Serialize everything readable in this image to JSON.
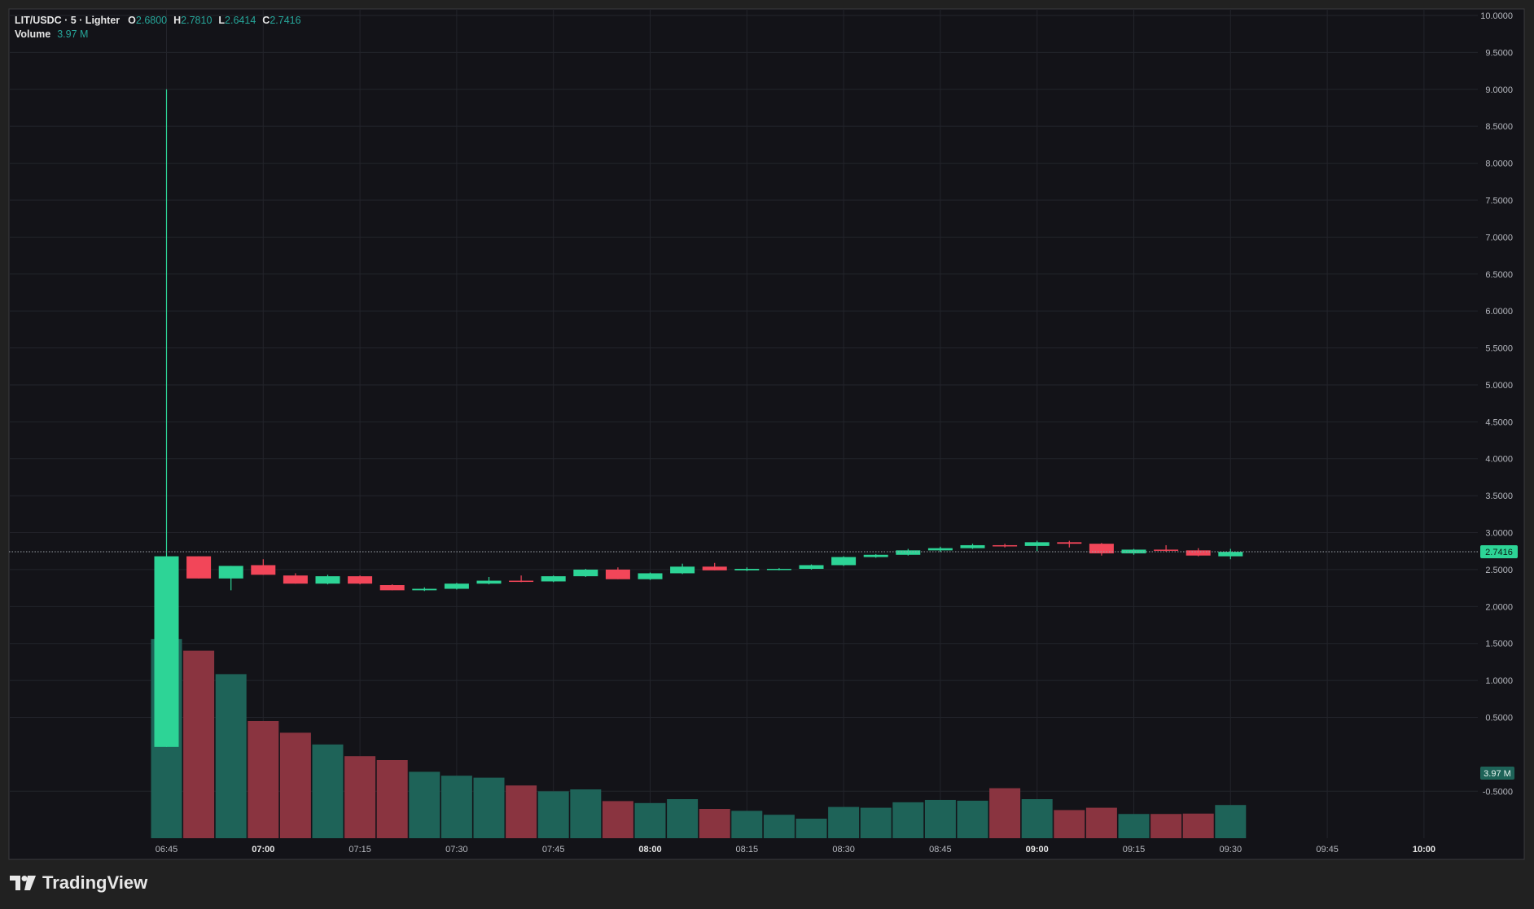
{
  "header": {
    "symbol_line": "LIT/USDC · 5 · Lighter",
    "open_key": "O",
    "open": "2.6800",
    "high_key": "H",
    "high": "2.7810",
    "low_key": "L",
    "low": "2.6414",
    "close_key": "C",
    "close": "2.7416",
    "volume_key": "Volume",
    "volume": "3.97 M"
  },
  "branding": {
    "name": "TradingView",
    "logo_icon": "tradingview-logo-icon"
  },
  "colors": {
    "background": "#131318",
    "outer": "#212121",
    "grid": "#23242b",
    "up": "#2dd496",
    "down": "#f24659",
    "vol_up": "#1e6358",
    "vol_down": "#8a3440",
    "axis_text": "#b6b8bf",
    "last_price_bg": "#2dd496"
  },
  "chart_data": {
    "type": "candlestick",
    "title": "LIT/USDC · 5 · Lighter",
    "interval_minutes": 5,
    "ylim": [
      -0.75,
      10.0
    ],
    "y_ticks": [
      "10.0000",
      "9.5000",
      "9.0000",
      "8.5000",
      "8.0000",
      "7.5000",
      "7.0000",
      "6.5000",
      "6.0000",
      "5.5000",
      "5.0000",
      "4.5000",
      "4.0000",
      "3.5000",
      "3.0000",
      "2.5000",
      "2.0000",
      "1.5000",
      "1.0000",
      "0.5000",
      "-0.5000"
    ],
    "y_tick_values": [
      10,
      9.5,
      9,
      8.5,
      8,
      7.5,
      7,
      6.5,
      6,
      5.5,
      5,
      4.5,
      4,
      3.5,
      3,
      2.5,
      2,
      1.5,
      1,
      0.5,
      -0.5
    ],
    "x_ticks": [
      {
        "label": "06:45",
        "bold": false
      },
      {
        "label": "07:00",
        "bold": true
      },
      {
        "label": "07:15",
        "bold": false
      },
      {
        "label": "07:30",
        "bold": false
      },
      {
        "label": "07:45",
        "bold": false
      },
      {
        "label": "08:00",
        "bold": true
      },
      {
        "label": "08:15",
        "bold": false
      },
      {
        "label": "08:30",
        "bold": false
      },
      {
        "label": "08:45",
        "bold": false
      },
      {
        "label": "09:00",
        "bold": true
      },
      {
        "label": "09:15",
        "bold": false
      },
      {
        "label": "09:30",
        "bold": false
      },
      {
        "label": "09:45",
        "bold": false
      },
      {
        "label": "10:00",
        "bold": true
      }
    ],
    "last_price": "2.7416",
    "last_volume_label": "3.97 M",
    "candles": [
      {
        "t": "06:45",
        "o": 0.1,
        "h": 9.0,
        "l": 0.1,
        "c": 2.68,
        "v": 5.1
      },
      {
        "t": "06:50",
        "o": 2.68,
        "h": 2.68,
        "l": 2.38,
        "c": 2.38,
        "v": 4.8
      },
      {
        "t": "06:55",
        "o": 2.38,
        "h": 2.55,
        "l": 2.22,
        "c": 2.55,
        "v": 4.2
      },
      {
        "t": "07:00",
        "o": 2.56,
        "h": 2.64,
        "l": 2.43,
        "c": 2.43,
        "v": 3.0
      },
      {
        "t": "07:05",
        "o": 2.42,
        "h": 2.45,
        "l": 2.31,
        "c": 2.31,
        "v": 2.7
      },
      {
        "t": "07:10",
        "o": 2.31,
        "h": 2.43,
        "l": 2.3,
        "c": 2.41,
        "v": 2.4
      },
      {
        "t": "07:15",
        "o": 2.41,
        "h": 2.42,
        "l": 2.3,
        "c": 2.31,
        "v": 2.1
      },
      {
        "t": "07:20",
        "o": 2.29,
        "h": 2.3,
        "l": 2.22,
        "c": 2.22,
        "v": 2.0
      },
      {
        "t": "07:25",
        "o": 2.22,
        "h": 2.26,
        "l": 2.21,
        "c": 2.24,
        "v": 1.7
      },
      {
        "t": "07:30",
        "o": 2.24,
        "h": 2.32,
        "l": 2.23,
        "c": 2.31,
        "v": 1.6
      },
      {
        "t": "07:35",
        "o": 2.31,
        "h": 2.4,
        "l": 2.3,
        "c": 2.35,
        "v": 1.55
      },
      {
        "t": "07:40",
        "o": 2.35,
        "h": 2.42,
        "l": 2.33,
        "c": 2.34,
        "v": 1.35
      },
      {
        "t": "07:45",
        "o": 2.34,
        "h": 2.42,
        "l": 2.33,
        "c": 2.41,
        "v": 1.2
      },
      {
        "t": "07:50",
        "o": 2.41,
        "h": 2.51,
        "l": 2.4,
        "c": 2.5,
        "v": 1.25
      },
      {
        "t": "07:55",
        "o": 2.5,
        "h": 2.53,
        "l": 2.37,
        "c": 2.37,
        "v": 0.95
      },
      {
        "t": "08:00",
        "o": 2.37,
        "h": 2.46,
        "l": 2.36,
        "c": 2.45,
        "v": 0.9
      },
      {
        "t": "08:05",
        "o": 2.45,
        "h": 2.58,
        "l": 2.44,
        "c": 2.54,
        "v": 1.0
      },
      {
        "t": "08:10",
        "o": 2.54,
        "h": 2.59,
        "l": 2.49,
        "c": 2.49,
        "v": 0.75
      },
      {
        "t": "08:15",
        "o": 2.49,
        "h": 2.53,
        "l": 2.48,
        "c": 2.51,
        "v": 0.7
      },
      {
        "t": "08:20",
        "o": 2.51,
        "h": 2.52,
        "l": 2.49,
        "c": 2.51,
        "v": 0.6
      },
      {
        "t": "08:25",
        "o": 2.51,
        "h": 2.57,
        "l": 2.5,
        "c": 2.56,
        "v": 0.5
      },
      {
        "t": "08:30",
        "o": 2.56,
        "h": 2.68,
        "l": 2.55,
        "c": 2.67,
        "v": 0.8
      },
      {
        "t": "08:35",
        "o": 2.67,
        "h": 2.71,
        "l": 2.66,
        "c": 2.7,
        "v": 0.78
      },
      {
        "t": "08:40",
        "o": 2.7,
        "h": 2.78,
        "l": 2.69,
        "c": 2.76,
        "v": 0.92
      },
      {
        "t": "08:45",
        "o": 2.76,
        "h": 2.81,
        "l": 2.74,
        "c": 2.79,
        "v": 0.98
      },
      {
        "t": "08:50",
        "o": 2.79,
        "h": 2.85,
        "l": 2.78,
        "c": 2.83,
        "v": 0.96
      },
      {
        "t": "08:55",
        "o": 2.83,
        "h": 2.85,
        "l": 2.8,
        "c": 2.82,
        "v": 1.28
      },
      {
        "t": "09:00",
        "o": 2.82,
        "h": 2.89,
        "l": 2.75,
        "c": 2.87,
        "v": 1.0
      },
      {
        "t": "09:05",
        "o": 2.87,
        "h": 2.89,
        "l": 2.8,
        "c": 2.85,
        "v": 0.72
      },
      {
        "t": "09:10",
        "o": 2.85,
        "h": 2.86,
        "l": 2.69,
        "c": 2.72,
        "v": 0.78
      },
      {
        "t": "09:15",
        "o": 2.72,
        "h": 2.78,
        "l": 2.7,
        "c": 2.77,
        "v": 0.62
      },
      {
        "t": "09:20",
        "o": 2.77,
        "h": 2.83,
        "l": 2.74,
        "c": 2.76,
        "v": 0.62
      },
      {
        "t": "09:25",
        "o": 2.76,
        "h": 2.79,
        "l": 2.68,
        "c": 2.69,
        "v": 0.63
      },
      {
        "t": "09:30",
        "o": 2.68,
        "h": 2.78,
        "l": 2.64,
        "c": 2.74,
        "v": 0.85
      }
    ]
  }
}
